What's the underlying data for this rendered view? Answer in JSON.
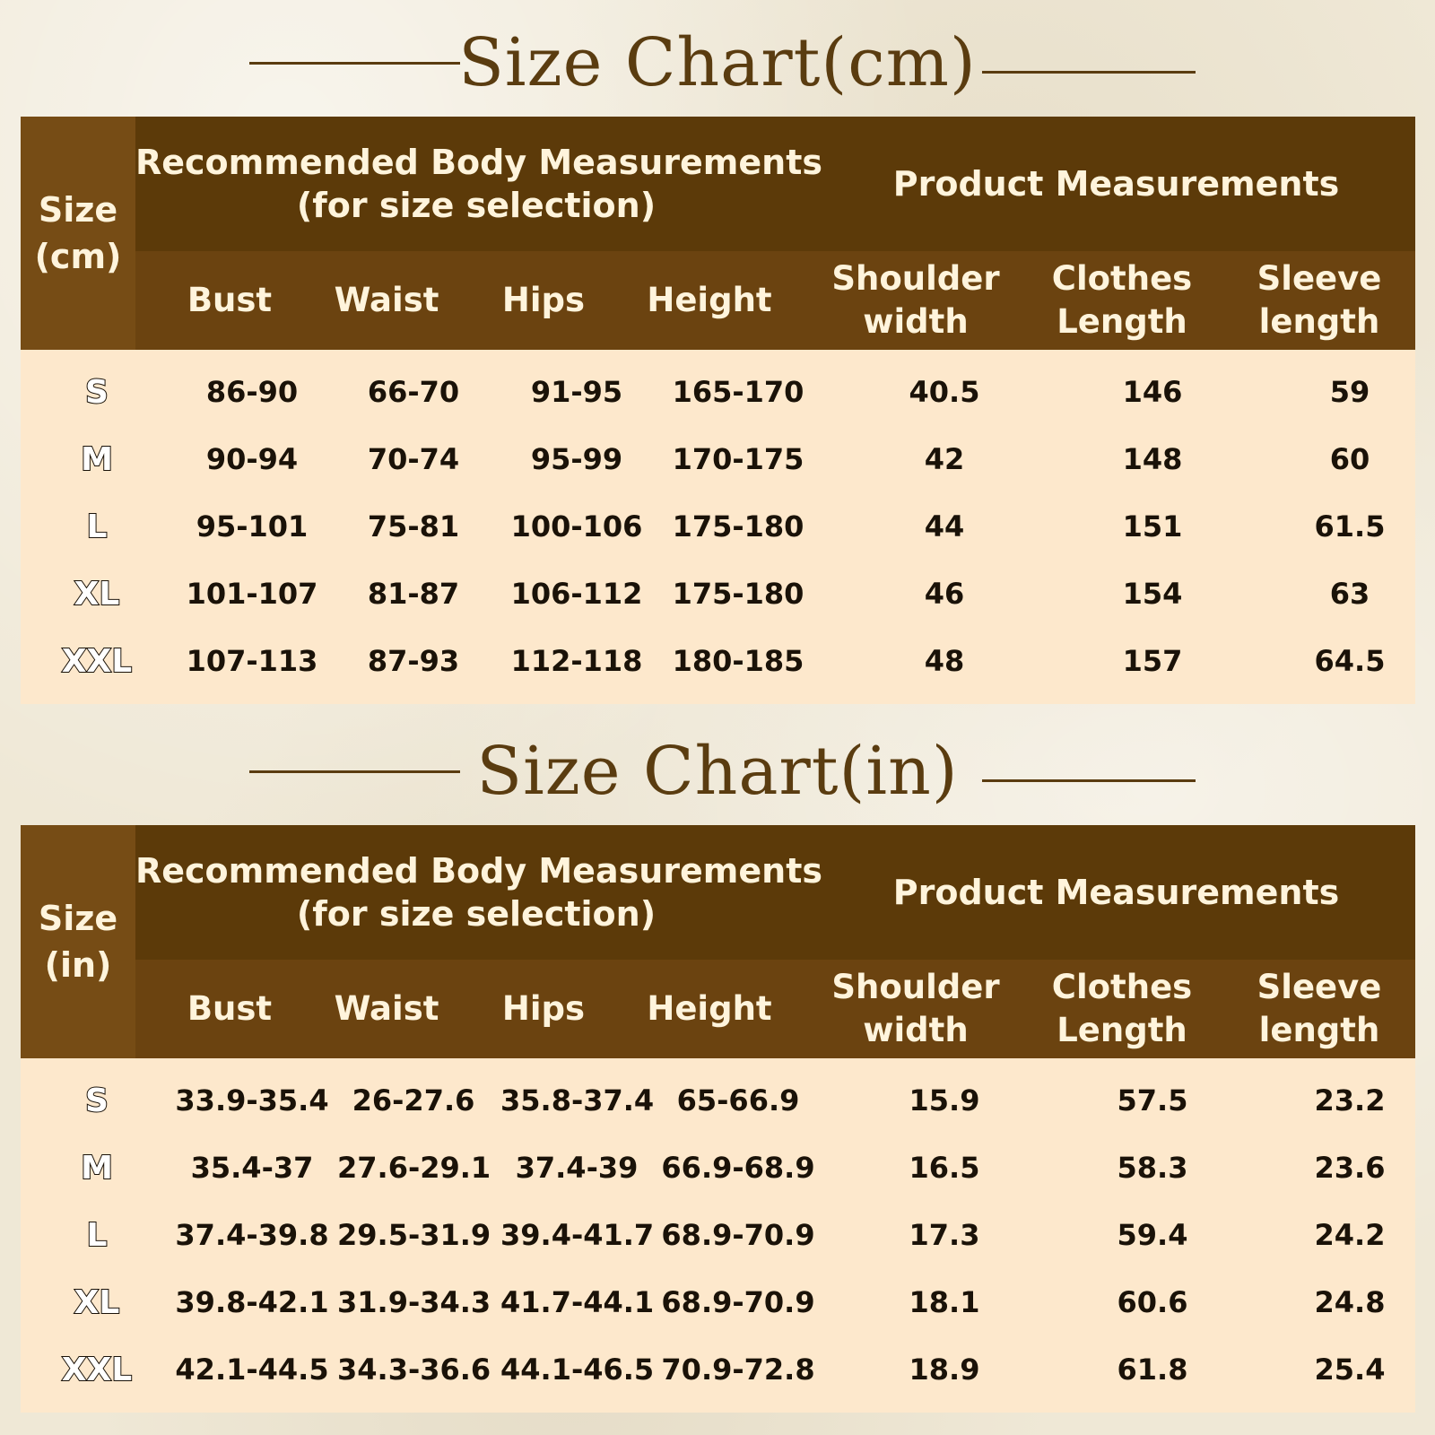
{
  "charts": [
    {
      "title": "Size Chart(cm)",
      "size_head": [
        "Size",
        "(cm)"
      ],
      "group_body": [
        "Recommended Body Measurements",
        "(for size selection)"
      ],
      "group_product": "Product Measurements",
      "columns": [
        {
          "lines": [
            "Bust"
          ]
        },
        {
          "lines": [
            "Waist"
          ]
        },
        {
          "lines": [
            "Hips"
          ]
        },
        {
          "lines": [
            "Height"
          ]
        },
        {
          "lines": [
            "Shoulder",
            "width"
          ]
        },
        {
          "lines": [
            "Clothes",
            "Length"
          ]
        },
        {
          "lines": [
            "Sleeve",
            "length"
          ]
        }
      ],
      "rows": [
        {
          "size": "S",
          "values": [
            "86-90",
            "66-70",
            "91-95",
            "165-170",
            "40.5",
            "146",
            "59"
          ]
        },
        {
          "size": "M",
          "values": [
            "90-94",
            "70-74",
            "95-99",
            "170-175",
            "42",
            "148",
            "60"
          ]
        },
        {
          "size": "L",
          "values": [
            "95-101",
            "75-81",
            "100-106",
            "175-180",
            "44",
            "151",
            "61.5"
          ]
        },
        {
          "size": "XL",
          "values": [
            "101-107",
            "81-87",
            "106-112",
            "175-180",
            "46",
            "154",
            "63"
          ]
        },
        {
          "size": "XXL",
          "values": [
            "107-113",
            "87-93",
            "112-118",
            "180-185",
            "48",
            "157",
            "64.5"
          ]
        }
      ]
    },
    {
      "title": "Size Chart(in)",
      "size_head": [
        "Size",
        "(in)"
      ],
      "group_body": [
        "Recommended Body Measurements",
        "(for size selection)"
      ],
      "group_product": "Product Measurements",
      "columns": [
        {
          "lines": [
            "Bust"
          ]
        },
        {
          "lines": [
            "Waist"
          ]
        },
        {
          "lines": [
            "Hips"
          ]
        },
        {
          "lines": [
            "Height"
          ]
        },
        {
          "lines": [
            "Shoulder",
            "width"
          ]
        },
        {
          "lines": [
            "Clothes",
            "Length"
          ]
        },
        {
          "lines": [
            "Sleeve",
            "length"
          ]
        }
      ],
      "rows": [
        {
          "size": "S",
          "values": [
            "33.9-35.4",
            "26-27.6",
            "35.8-37.4",
            "65-66.9",
            "15.9",
            "57.5",
            "23.2"
          ]
        },
        {
          "size": "M",
          "values": [
            "35.4-37",
            "27.6-29.1",
            "37.4-39",
            "66.9-68.9",
            "16.5",
            "58.3",
            "23.6"
          ]
        },
        {
          "size": "L",
          "values": [
            "37.4-39.8",
            "29.5-31.9",
            "39.4-41.7",
            "68.9-70.9",
            "17.3",
            "59.4",
            "24.2"
          ]
        },
        {
          "size": "XL",
          "values": [
            "39.8-42.1",
            "31.9-34.3",
            "41.7-44.1",
            "68.9-70.9",
            "18.1",
            "60.6",
            "24.8"
          ]
        },
        {
          "size": "XXL",
          "values": [
            "42.1-44.5",
            "34.3-36.6",
            "44.1-46.5",
            "70.9-72.8",
            "18.9",
            "61.8",
            "25.4"
          ]
        }
      ]
    }
  ]
}
